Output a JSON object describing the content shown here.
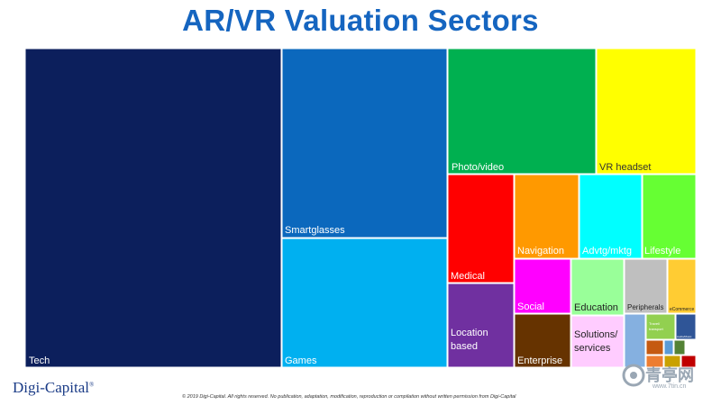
{
  "title": "AR/VR Valuation Sectors",
  "brand": "Digi-Capital",
  "copyright": "© 2019 Digi-Capital. All rights reserved. No publication, adaptation, modification, reproduction or compilation without written permission from Digi-Capital",
  "watermark": {
    "main": "青亭网",
    "sub": "www.7tin.cn"
  },
  "chart_data": {
    "type": "treemap",
    "title": "AR/VR Valuation Sectors",
    "tiles": [
      {
        "label": "Tech",
        "value": 0.353,
        "color": "#0c1f5c",
        "text_color": "#ffffff"
      },
      {
        "label": "Smartglasses",
        "value": 0.094,
        "color": "#0b68bd",
        "text_color": "#ffffff"
      },
      {
        "label": "Games",
        "value": 0.08,
        "color": "#00b0f0",
        "text_color": "#ffffff"
      },
      {
        "label": "Photo/video",
        "value": 0.06,
        "color": "#00b050",
        "text_color": "#ffffff"
      },
      {
        "label": "VR headset",
        "value": 0.051,
        "color": "#ffff00",
        "text_color": "#333333"
      },
      {
        "label": "Medical",
        "value": 0.033,
        "color": "#ff0000",
        "text_color": "#ffffff"
      },
      {
        "label": "Location based",
        "value": 0.03,
        "color": "#7030a0",
        "text_color": "#ffffff"
      },
      {
        "label": "Navigation",
        "value": 0.029,
        "color": "#ff9900",
        "text_color": "#ffffff"
      },
      {
        "label": "Advtg/mktg",
        "value": 0.026,
        "color": "#00ffff",
        "text_color": "#ffffff"
      },
      {
        "label": "Lifestyle",
        "value": 0.025,
        "color": "#66ff33",
        "text_color": "#ffffff"
      },
      {
        "label": "Social",
        "value": 0.018,
        "color": "#ff00ff",
        "text_color": "#ffffff"
      },
      {
        "label": "Enterprise",
        "value": 0.018,
        "color": "#663300",
        "text_color": "#ffffff"
      },
      {
        "label": "Education",
        "value": 0.016,
        "color": "#99ff99",
        "text_color": "#222222"
      },
      {
        "label": "Solutions/ services",
        "value": 0.017,
        "color": "#ffccff",
        "text_color": "#222222"
      },
      {
        "label": "Peripherals",
        "value": 0.011,
        "color": "#bfbfbf",
        "text_color": "#222222"
      },
      {
        "label": "eCommerce",
        "value": 0.008,
        "color": "#ffcc33",
        "text_color": "#222222"
      },
      {
        "label": "",
        "value": 0.003,
        "color": "#85b0e0",
        "text_color": "#ffffff"
      },
      {
        "label": "Travel/ transport",
        "value": 0.003,
        "color": "#92d050",
        "text_color": "#ffffff"
      },
      {
        "label": "Audio/Music",
        "value": 0.002,
        "color": "#2f5597",
        "text_color": "#ffffff"
      },
      {
        "label": "",
        "value": 0.001,
        "color": "#c55a11",
        "text_color": "#ffffff"
      },
      {
        "label": "",
        "value": 0.001,
        "color": "#5b9bd5",
        "text_color": "#ffffff"
      },
      {
        "label": "",
        "value": 0.001,
        "color": "#548235",
        "text_color": "#ffffff"
      },
      {
        "label": "",
        "value": 0.0008,
        "color": "#ed7d31",
        "text_color": "#ffffff"
      },
      {
        "label": "",
        "value": 0.0008,
        "color": "#c9a100",
        "text_color": "#ffffff"
      },
      {
        "label": "",
        "value": 0.0005,
        "color": "#c00000",
        "text_color": "#ffffff"
      }
    ]
  }
}
